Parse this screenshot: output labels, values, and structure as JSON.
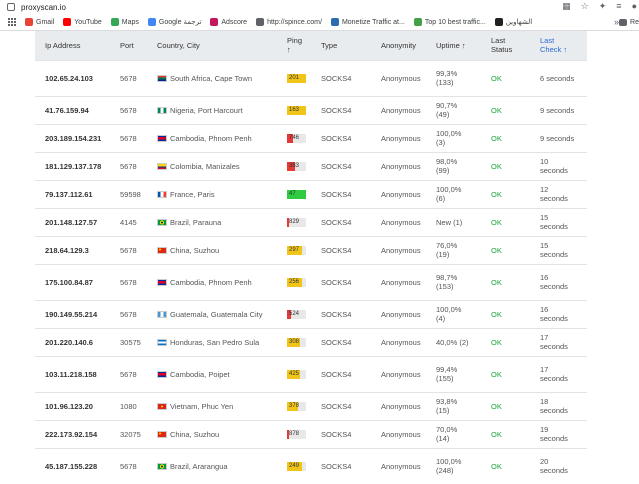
{
  "browser": {
    "url": "proxyscan.io",
    "bookmarks": [
      {
        "label": "Gmail",
        "color": "#ea4335"
      },
      {
        "label": "YouTube",
        "color": "#ff0000"
      },
      {
        "label": "Maps",
        "color": "#34a853"
      },
      {
        "label": "Google ترجمة",
        "color": "#4285f4"
      },
      {
        "label": "Adscore",
        "color": "#c2185b"
      },
      {
        "label": "http://spince.com/",
        "color": "#5f6368"
      },
      {
        "label": "Monetize Traffic at...",
        "color": "#2b6cb0"
      },
      {
        "label": "Top 10 best traffic...",
        "color": "#43a047"
      },
      {
        "label": "الشهاوين",
        "color": "#212121"
      }
    ],
    "more": "»",
    "reading_list": "Re"
  },
  "table": {
    "headers": {
      "ip": "Ip Address",
      "port": "Port",
      "country": "Country, City",
      "ping": "Ping ↑",
      "type": "Type",
      "anonymity": "Anonymity",
      "uptime": "Uptime ↑",
      "status": "Last Status",
      "check": "Last Check ↑"
    },
    "rows": [
      {
        "ip": "102.65.24.103",
        "port": "5678",
        "flag": "za",
        "location": "South Africa, Cape Town",
        "ping": "201",
        "ping_color": "#f0c419",
        "ping_level": 1.0,
        "type": "SOCKS4",
        "anonymity": "Anonymous",
        "uptime": "99,3% (133)",
        "status": "OK",
        "check": "6 seconds",
        "tall": true
      },
      {
        "ip": "41.76.159.94",
        "port": "5678",
        "flag": "ng",
        "location": "Nigeria, Port Harcourt",
        "ping": "163",
        "ping_color": "#f0c419",
        "ping_level": 1.0,
        "type": "SOCKS4",
        "anonymity": "Anonymous",
        "uptime": "90,7% (49)",
        "status": "OK",
        "check": "9 seconds",
        "tall": false
      },
      {
        "ip": "203.189.154.231",
        "port": "5678",
        "flag": "kh",
        "location": "Cambodia, Phnom Penh",
        "ping": "746",
        "ping_color": "#e53935",
        "ping_level": 0.3,
        "type": "SOCKS4",
        "anonymity": "Anonymous",
        "uptime": "100,0% (3)",
        "status": "OK",
        "check": "9 seconds",
        "tall": false
      },
      {
        "ip": "181.129.137.178",
        "port": "5678",
        "flag": "co",
        "location": "Colombia, Manizales",
        "ping": "383",
        "ping_color": "#e53935",
        "ping_level": 0.4,
        "type": "SOCKS4",
        "anonymity": "Anonymous",
        "uptime": "98,0% (99)",
        "status": "OK",
        "check": "10 seconds",
        "tall": false
      },
      {
        "ip": "79.137.112.61",
        "port": "59598",
        "flag": "fr",
        "location": "France, Paris",
        "ping": "47",
        "ping_color": "#2ecc40",
        "ping_level": 1.0,
        "type": "SOCKS4",
        "anonymity": "Anonymous",
        "uptime": "100,0% (6)",
        "status": "OK",
        "check": "12 seconds",
        "tall": false
      },
      {
        "ip": "201.148.127.57",
        "port": "4145",
        "flag": "br",
        "location": "Brazil, Parauna",
        "ping": "829",
        "ping_color": "#e53935",
        "ping_level": 0.1,
        "type": "SOCKS4",
        "anonymity": "Anonymous",
        "uptime": "New (1)",
        "status": "OK",
        "check": "15 seconds",
        "tall": false
      },
      {
        "ip": "218.64.129.3",
        "port": "5678",
        "flag": "cn",
        "location": "China, Suzhou",
        "ping": "297",
        "ping_color": "#f0c419",
        "ping_level": 0.8,
        "type": "SOCKS4",
        "anonymity": "Anonymous",
        "uptime": "76,0% (19)",
        "status": "OK",
        "check": "15 seconds",
        "tall": false
      },
      {
        "ip": "175.100.84.87",
        "port": "5678",
        "flag": "kh",
        "location": "Cambodia, Phnom Penh",
        "ping": "256",
        "ping_color": "#f0c419",
        "ping_level": 0.8,
        "type": "SOCKS4",
        "anonymity": "Anonymous",
        "uptime": "98,7% (153)",
        "status": "OK",
        "check": "16 seconds",
        "tall": true
      },
      {
        "ip": "190.149.55.214",
        "port": "5678",
        "flag": "gt",
        "location": "Guatemala, Guatemala City",
        "ping": "524",
        "ping_color": "#e53935",
        "ping_level": 0.2,
        "type": "SOCKS4",
        "anonymity": "Anonymous",
        "uptime": "100,0% (4)",
        "status": "OK",
        "check": "16 seconds",
        "tall": false
      },
      {
        "ip": "201.220.140.6",
        "port": "30575",
        "flag": "hn",
        "location": "Honduras, San Pedro Sula",
        "ping": "308",
        "ping_color": "#f0c419",
        "ping_level": 0.7,
        "type": "SOCKS4",
        "anonymity": "Anonymous",
        "uptime": "40,0% (2)",
        "status": "OK",
        "check": "17 seconds",
        "tall": false
      },
      {
        "ip": "103.11.218.158",
        "port": "5678",
        "flag": "kh",
        "location": "Cambodia, Poipet",
        "ping": "425",
        "ping_color": "#f0c419",
        "ping_level": 0.7,
        "type": "SOCKS4",
        "anonymity": "Anonymous",
        "uptime": "99,4% (155)",
        "status": "OK",
        "check": "17 seconds",
        "tall": true
      },
      {
        "ip": "101.96.123.20",
        "port": "1080",
        "flag": "vn",
        "location": "Vietnam, Phuc Yen",
        "ping": "378",
        "ping_color": "#f0c419",
        "ping_level": 0.6,
        "type": "SOCKS4",
        "anonymity": "Anonymous",
        "uptime": "93,8% (15)",
        "status": "OK",
        "check": "18 seconds",
        "tall": false
      },
      {
        "ip": "222.173.92.154",
        "port": "32075",
        "flag": "cn",
        "location": "China, Suzhou",
        "ping": "878",
        "ping_color": "#e53935",
        "ping_level": 0.1,
        "type": "SOCKS4",
        "anonymity": "Anonymous",
        "uptime": "70,0% (14)",
        "status": "OK",
        "check": "19 seconds",
        "tall": false
      },
      {
        "ip": "45.187.155.228",
        "port": "5678",
        "flag": "br",
        "location": "Brazil, Ararangua",
        "ping": "249",
        "ping_color": "#f0c419",
        "ping_level": 0.8,
        "type": "SOCKS4",
        "anonymity": "Anonymous",
        "uptime": "100,0% (248)",
        "status": "OK",
        "check": "20 seconds",
        "tall": true
      }
    ]
  }
}
